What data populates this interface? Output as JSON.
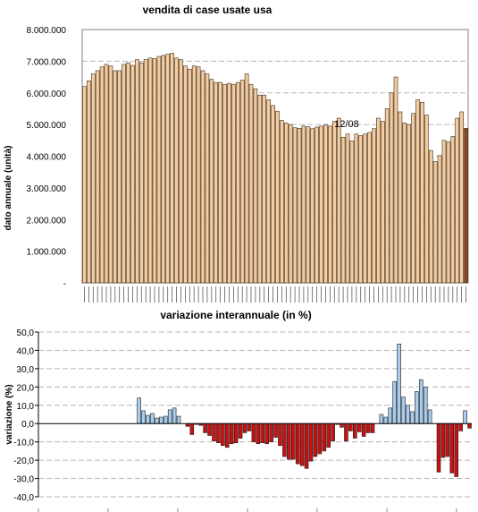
{
  "chart_data": [
    {
      "type": "bar",
      "title": "vendita di case usate usa",
      "xlabel": "variazione interannuale (in %)",
      "ylabel": "dato annuale (unità)",
      "ylim": [
        0,
        8000000
      ],
      "ytick_labels": [
        "-",
        "1.000.000",
        "2.000.000",
        "3.000.000",
        "4.000.000",
        "5.000.000",
        "6.000.000",
        "7.000.000",
        "8.000.000"
      ],
      "annotation": "12/08",
      "grid": true,
      "colors": {
        "bar": "#f5cc9f",
        "bar_edge": "#3a2a1a",
        "last_bar": "#8b4a1c"
      },
      "values": [
        6200000,
        6380000,
        6600000,
        6700000,
        6820000,
        6900000,
        6850000,
        6700000,
        6700000,
        6900000,
        6950000,
        6870000,
        7050000,
        6950000,
        7050000,
        7100000,
        7080000,
        7150000,
        7180000,
        7220000,
        7250000,
        7100000,
        7050000,
        6850000,
        6750000,
        6850000,
        6820000,
        6700000,
        6600000,
        6430000,
        6330000,
        6330000,
        6270000,
        6300000,
        6270000,
        6330000,
        6400000,
        6600000,
        6270000,
        6130000,
        5930000,
        5930000,
        5780000,
        5600000,
        5420000,
        5130000,
        5050000,
        5000000,
        4900000,
        4880000,
        4950000,
        4930000,
        4870000,
        4920000,
        4950000,
        4990000,
        4950000,
        5100000,
        5200000,
        4600000,
        4700000,
        4480000,
        4700000,
        4650000,
        4700000,
        4750000,
        4870000,
        5200000,
        5100000,
        5500000,
        6000000,
        6500000,
        5400000,
        5050000,
        5000000,
        5350000,
        5780000,
        5700000,
        5300000,
        4180000,
        3830000,
        4020000,
        4500000,
        4450000,
        4620000,
        5200000,
        5400000,
        4880000
      ]
    },
    {
      "type": "bar",
      "title": "",
      "xlabel": "",
      "ylabel": "variazione (%)",
      "ylim": [
        -40,
        50
      ],
      "ytick_labels": [
        "-40,0",
        "-30,0",
        "-20,0",
        "-10,0",
        "0,0",
        "10,0",
        "20,0",
        "30,0",
        "40,0",
        "50,0"
      ],
      "grid": true,
      "colors": {
        "positive": "#a8cdef",
        "negative": "#cc1111",
        "bar_edge": "#1a1a1a"
      },
      "values": [
        0,
        0,
        0,
        0,
        0,
        0,
        0,
        0,
        0,
        0,
        0,
        0,
        14,
        7,
        4.5,
        5.5,
        3,
        3.5,
        4,
        7.5,
        8.5,
        4,
        0,
        -1.5,
        -6,
        -0.5,
        -1,
        -5,
        -6.5,
        -9.5,
        -10.5,
        -12,
        -13,
        -11,
        -10.5,
        -8,
        -5,
        -4,
        -10,
        -11,
        -10.5,
        -11,
        -10,
        -7.5,
        -12,
        -18,
        -19.5,
        -19.5,
        -22,
        -23,
        -24.5,
        -20.5,
        -18,
        -16.5,
        -15,
        -13,
        -9.5,
        -0.5,
        -2,
        -9.5,
        -4,
        -8,
        -4.5,
        -7,
        -5,
        -5,
        0,
        5,
        3.5,
        8.5,
        23,
        43.5,
        14.5,
        10,
        6.5,
        17.5,
        24,
        20,
        7.5,
        0,
        -26.5,
        -18.5,
        -18,
        -27,
        -29,
        -4,
        7,
        -2.5
      ]
    }
  ]
}
